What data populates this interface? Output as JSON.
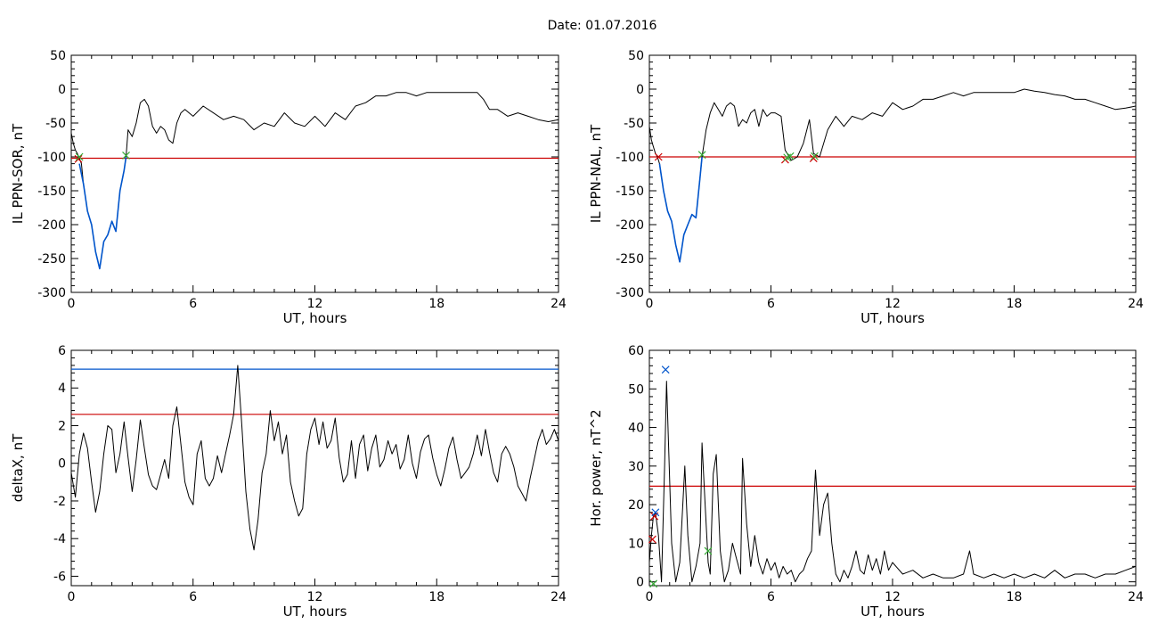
{
  "figure": {
    "title": "Date:  01.07.2016"
  },
  "chart_data": [
    {
      "type": "line",
      "xlabel": "UT, hours",
      "ylabel": "IL PPN-SOR, nT",
      "xlim": [
        0,
        24
      ],
      "ylim": [
        -300,
        50
      ],
      "xticks": [
        "0",
        "6",
        "12",
        "18",
        "24"
      ],
      "yticks": [
        "50",
        "0",
        "-50",
        "-100",
        "-150",
        "-200",
        "-250",
        "-300"
      ],
      "threshold_lines": [
        {
          "value": -102,
          "color": "#cc0000"
        }
      ],
      "series": [
        {
          "color": "#000000",
          "x": [
            0,
            0.1,
            0.2,
            0.3,
            0.4,
            0.5,
            0.6,
            0.8,
            1.0,
            1.2,
            1.4,
            1.6,
            1.8,
            2.0,
            2.2,
            2.4,
            2.6,
            2.7,
            2.8,
            3.0,
            3.2,
            3.4,
            3.6,
            3.8,
            4.0,
            4.2,
            4.4,
            4.6,
            4.8,
            5.0,
            5.2,
            5.4,
            5.6,
            6.0,
            6.5,
            7.0,
            7.5,
            8.0,
            8.5,
            9.0,
            9.5,
            10.0,
            10.5,
            11.0,
            11.5,
            12.0,
            12.5,
            13.0,
            13.5,
            14.0,
            14.5,
            15.0,
            15.5,
            16.0,
            16.5,
            17.0,
            17.5,
            18.0,
            18.5,
            19.0,
            19.5,
            20.0,
            20.3,
            20.6,
            21.0,
            21.5,
            22.0,
            22.5,
            23.0,
            23.5,
            24.0
          ],
          "y": [
            -65,
            -80,
            -90,
            -95,
            -102,
            -110,
            -140,
            -180,
            -200,
            -240,
            -265,
            -225,
            -215,
            -195,
            -210,
            -150,
            -120,
            -100,
            -60,
            -70,
            -50,
            -20,
            -15,
            -25,
            -55,
            -65,
            -55,
            -60,
            -75,
            -80,
            -50,
            -35,
            -30,
            -40,
            -25,
            -35,
            -45,
            -40,
            -45,
            -60,
            -50,
            -55,
            -35,
            -50,
            -55,
            -40,
            -55,
            -35,
            -45,
            -25,
            -20,
            -10,
            -10,
            -5,
            -5,
            -10,
            -5,
            -5,
            -5,
            -5,
            -5,
            -5,
            -15,
            -30,
            -30,
            -40,
            -35,
            -40,
            -45,
            -48,
            -45
          ]
        },
        {
          "color": "#0055cc",
          "x": [
            0.4,
            0.6,
            0.8,
            1.0,
            1.2,
            1.4,
            1.6,
            1.8,
            2.0,
            2.2,
            2.4,
            2.6,
            2.7
          ],
          "y": [
            -110,
            -140,
            -180,
            -200,
            -240,
            -265,
            -225,
            -215,
            -195,
            -210,
            -150,
            -120,
            -100
          ]
        }
      ],
      "markers": [
        {
          "x": 0.35,
          "y": -103,
          "color": "#cc0000"
        },
        {
          "x": 0.4,
          "y": -100,
          "color": "#33aa33"
        },
        {
          "x": 2.7,
          "y": -98,
          "color": "#33aa33"
        }
      ]
    },
    {
      "type": "line",
      "xlabel": "UT, hours",
      "ylabel": "IL PPN-NAL, nT",
      "xlim": [
        0,
        24
      ],
      "ylim": [
        -300,
        50
      ],
      "xticks": [
        "0",
        "6",
        "12",
        "18",
        "24"
      ],
      "yticks": [
        "50",
        "0",
        "-50",
        "-100",
        "-150",
        "-200",
        "-250",
        "-300"
      ],
      "threshold_lines": [
        {
          "value": -100,
          "color": "#cc0000"
        }
      ],
      "series": [
        {
          "color": "#000000",
          "x": [
            0,
            0.1,
            0.2,
            0.3,
            0.4,
            0.5,
            0.7,
            0.9,
            1.1,
            1.3,
            1.5,
            1.7,
            1.9,
            2.1,
            2.3,
            2.5,
            2.6,
            2.8,
            3.0,
            3.2,
            3.4,
            3.6,
            3.8,
            4.0,
            4.2,
            4.4,
            4.6,
            4.8,
            5.0,
            5.2,
            5.4,
            5.6,
            5.8,
            6.0,
            6.2,
            6.5,
            6.7,
            7.0,
            7.3,
            7.6,
            7.9,
            8.1,
            8.4,
            8.8,
            9.2,
            9.6,
            10.0,
            10.5,
            11.0,
            11.5,
            12.0,
            12.5,
            13.0,
            13.5,
            14.0,
            14.5,
            15.0,
            15.5,
            16.0,
            16.5,
            17.0,
            17.5,
            18.0,
            18.5,
            19.0,
            19.5,
            20.0,
            20.5,
            21.0,
            21.5,
            22.0,
            22.5,
            23.0,
            23.5,
            24.0
          ],
          "y": [
            -55,
            -75,
            -85,
            -95,
            -100,
            -110,
            -150,
            -180,
            -195,
            -230,
            -255,
            -215,
            -200,
            -185,
            -190,
            -130,
            -100,
            -60,
            -35,
            -20,
            -30,
            -40,
            -25,
            -20,
            -25,
            -55,
            -45,
            -50,
            -35,
            -30,
            -55,
            -30,
            -40,
            -35,
            -35,
            -40,
            -90,
            -105,
            -100,
            -80,
            -45,
            -95,
            -100,
            -60,
            -40,
            -55,
            -40,
            -45,
            -35,
            -40,
            -20,
            -30,
            -25,
            -15,
            -15,
            -10,
            -5,
            -10,
            -5,
            -5,
            -5,
            -5,
            -5,
            0,
            -3,
            -5,
            -8,
            -10,
            -15,
            -15,
            -20,
            -25,
            -30,
            -28,
            -25
          ]
        },
        {
          "color": "#0055cc",
          "x": [
            0.5,
            0.7,
            0.9,
            1.1,
            1.3,
            1.5,
            1.7,
            1.9,
            2.1,
            2.3,
            2.5,
            2.6
          ],
          "y": [
            -110,
            -150,
            -180,
            -195,
            -230,
            -255,
            -215,
            -200,
            -185,
            -190,
            -130,
            -100
          ]
        }
      ],
      "markers": [
        {
          "x": 0.45,
          "y": -100,
          "color": "#cc0000"
        },
        {
          "x": 2.6,
          "y": -97,
          "color": "#33aa33"
        },
        {
          "x": 6.7,
          "y": -104,
          "color": "#cc0000"
        },
        {
          "x": 6.8,
          "y": -101,
          "color": "#33aa33"
        },
        {
          "x": 6.95,
          "y": -99,
          "color": "#33aa33"
        },
        {
          "x": 8.1,
          "y": -102,
          "color": "#cc0000"
        },
        {
          "x": 8.15,
          "y": -99,
          "color": "#33aa33"
        }
      ]
    },
    {
      "type": "line",
      "xlabel": "UT, hours",
      "ylabel": "deltaX, nT",
      "xlim": [
        0,
        24
      ],
      "ylim": [
        -6.5,
        6
      ],
      "xticks": [
        "0",
        "6",
        "12",
        "18",
        "24"
      ],
      "yticks": [
        "6",
        "4",
        "2",
        "0",
        "-2",
        "-4",
        "-6"
      ],
      "threshold_lines": [
        {
          "value": 5.0,
          "color": "#0055cc"
        },
        {
          "value": 2.6,
          "color": "#cc0000"
        }
      ],
      "series": [
        {
          "color": "#000000",
          "x": [
            0,
            0.2,
            0.4,
            0.6,
            0.8,
            1.0,
            1.2,
            1.4,
            1.6,
            1.8,
            2.0,
            2.2,
            2.4,
            2.6,
            2.8,
            3.0,
            3.2,
            3.4,
            3.6,
            3.8,
            4.0,
            4.2,
            4.4,
            4.6,
            4.8,
            5.0,
            5.2,
            5.4,
            5.6,
            5.8,
            6.0,
            6.2,
            6.4,
            6.6,
            6.8,
            7.0,
            7.2,
            7.4,
            7.6,
            7.8,
            8.0,
            8.2,
            8.4,
            8.6,
            8.8,
            9.0,
            9.2,
            9.4,
            9.6,
            9.8,
            10.0,
            10.2,
            10.4,
            10.6,
            10.8,
            11.0,
            11.2,
            11.4,
            11.6,
            11.8,
            12.0,
            12.2,
            12.4,
            12.6,
            12.8,
            13.0,
            13.2,
            13.4,
            13.6,
            13.8,
            14.0,
            14.2,
            14.4,
            14.6,
            14.8,
            15.0,
            15.2,
            15.4,
            15.6,
            15.8,
            16.0,
            16.2,
            16.4,
            16.6,
            16.8,
            17.0,
            17.2,
            17.4,
            17.6,
            17.8,
            18.0,
            18.2,
            18.4,
            18.6,
            18.8,
            19.0,
            19.2,
            19.4,
            19.6,
            19.8,
            20.0,
            20.2,
            20.4,
            20.6,
            20.8,
            21.0,
            21.2,
            21.4,
            21.6,
            21.8,
            22.0,
            22.2,
            22.4,
            22.6,
            22.8,
            23.0,
            23.2,
            23.4,
            23.6,
            23.8,
            24.0
          ],
          "y": [
            -0.5,
            -1.8,
            0.5,
            1.6,
            0.8,
            -1.0,
            -2.6,
            -1.5,
            0.5,
            2.0,
            1.8,
            -0.5,
            0.5,
            2.2,
            0.3,
            -1.5,
            0.2,
            2.3,
            0.8,
            -0.6,
            -1.2,
            -1.4,
            -0.6,
            0.2,
            -0.8,
            2.0,
            3.0,
            1.0,
            -1.0,
            -1.8,
            -2.2,
            0.5,
            1.2,
            -0.8,
            -1.2,
            -0.8,
            0.4,
            -0.5,
            0.5,
            1.5,
            2.6,
            5.2,
            2.0,
            -1.5,
            -3.5,
            -4.6,
            -3.0,
            -0.5,
            0.5,
            2.8,
            1.2,
            2.2,
            0.5,
            1.5,
            -1.0,
            -2.0,
            -2.8,
            -2.4,
            0.5,
            1.8,
            2.4,
            1.0,
            2.2,
            0.8,
            1.2,
            2.4,
            0.3,
            -1.0,
            -0.6,
            1.2,
            -0.8,
            1.0,
            1.5,
            -0.4,
            0.8,
            1.5,
            -0.2,
            0.2,
            1.2,
            0.5,
            1.0,
            -0.3,
            0.2,
            1.5,
            0.0,
            -0.8,
            0.6,
            1.3,
            1.5,
            0.3,
            -0.6,
            -1.2,
            -0.3,
            0.8,
            1.4,
            0.2,
            -0.8,
            -0.5,
            -0.2,
            0.5,
            1.5,
            0.4,
            1.8,
            0.6,
            -0.5,
            -1.0,
            0.5,
            0.9,
            0.5,
            -0.2,
            -1.2,
            -1.6,
            -2.0,
            -0.8,
            0.2,
            1.2,
            1.8,
            1.0,
            1.3,
            1.8,
            1.2
          ]
        }
      ],
      "markers": []
    },
    {
      "type": "line",
      "xlabel": "UT, hours",
      "ylabel": "Hor. power, nT^2",
      "xlim": [
        0,
        24
      ],
      "ylim": [
        -1,
        60
      ],
      "xticks": [
        "0",
        "6",
        "12",
        "18",
        "24"
      ],
      "yticks": [
        "60",
        "50",
        "40",
        "30",
        "20",
        "10",
        "0"
      ],
      "threshold_lines": [
        {
          "value": 24.8,
          "color": "#cc0000"
        }
      ],
      "series": [
        {
          "color": "#000000",
          "x": [
            0,
            0.1,
            0.2,
            0.3,
            0.45,
            0.6,
            0.75,
            0.85,
            0.95,
            1.1,
            1.3,
            1.5,
            1.6,
            1.75,
            1.9,
            2.1,
            2.3,
            2.5,
            2.6,
            2.75,
            2.9,
            3.0,
            3.15,
            3.3,
            3.5,
            3.7,
            3.9,
            4.1,
            4.3,
            4.5,
            4.6,
            4.8,
            5.0,
            5.2,
            5.4,
            5.6,
            5.8,
            6.0,
            6.2,
            6.4,
            6.6,
            6.8,
            7.0,
            7.2,
            7.4,
            7.6,
            7.8,
            8.0,
            8.2,
            8.4,
            8.6,
            8.8,
            9.0,
            9.2,
            9.4,
            9.6,
            9.8,
            10.0,
            10.2,
            10.4,
            10.6,
            10.8,
            11.0,
            11.2,
            11.4,
            11.6,
            11.8,
            12.0,
            12.5,
            13.0,
            13.5,
            14.0,
            14.5,
            15.0,
            15.5,
            15.8,
            16.0,
            16.5,
            17.0,
            17.5,
            18.0,
            18.5,
            19.0,
            19.5,
            20.0,
            20.5,
            21.0,
            21.5,
            22.0,
            22.5,
            23.0,
            23.5,
            24.0
          ],
          "y": [
            5,
            12,
            17,
            18,
            12,
            0,
            30,
            52,
            35,
            10,
            0,
            5,
            15,
            30,
            12,
            0,
            4,
            10,
            36,
            20,
            5,
            2,
            28,
            33,
            8,
            0,
            3,
            10,
            6,
            2,
            32,
            15,
            4,
            12,
            5,
            2,
            6,
            3,
            5,
            1,
            4,
            2,
            3,
            0,
            2,
            3,
            6,
            8,
            29,
            12,
            20,
            23,
            10,
            2,
            0,
            3,
            1,
            4,
            8,
            3,
            2,
            7,
            3,
            6,
            2,
            8,
            3,
            5,
            2,
            3,
            1,
            2,
            1,
            1,
            2,
            8,
            2,
            1,
            2,
            1,
            2,
            1,
            2,
            1,
            3,
            1,
            2,
            2,
            1,
            2,
            2,
            3,
            4
          ]
        }
      ],
      "markers": [
        {
          "x": 0.8,
          "y": 55,
          "color": "#0055cc"
        },
        {
          "x": 0.25,
          "y": 17,
          "color": "#cc0000"
        },
        {
          "x": 0.15,
          "y": 11,
          "color": "#cc0000"
        },
        {
          "x": 0.3,
          "y": 18,
          "color": "#0055cc"
        },
        {
          "x": 2.9,
          "y": 8,
          "color": "#33aa33"
        },
        {
          "x": 0.2,
          "y": -0.5,
          "color": "#33aa33"
        }
      ]
    }
  ]
}
